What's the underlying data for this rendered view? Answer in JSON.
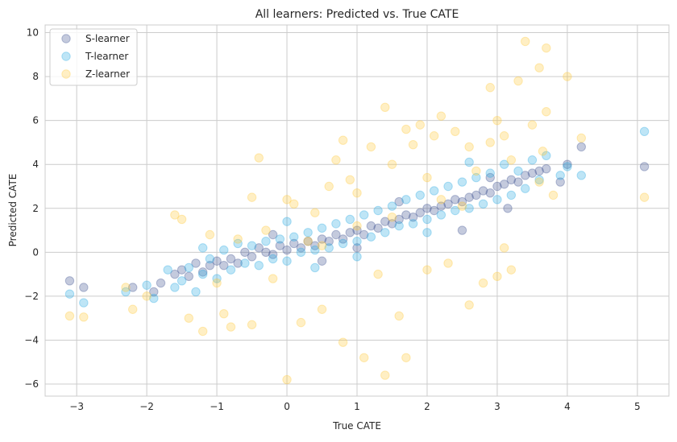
{
  "chart_data": {
    "type": "scatter",
    "title": "All learners: Predicted vs. True CATE",
    "xlabel": "True CATE",
    "ylabel": "Predicted CATE",
    "xlim": [
      -3.45,
      5.45
    ],
    "ylim": [
      -6.55,
      10.35
    ],
    "xticks": [
      -3,
      -2,
      -1,
      0,
      1,
      2,
      3,
      4,
      5
    ],
    "yticks": [
      -6,
      -4,
      -2,
      0,
      2,
      4,
      6,
      8,
      10
    ],
    "xtick_labels": [
      "−3",
      "−2",
      "−1",
      "0",
      "1",
      "2",
      "3",
      "4",
      "5"
    ],
    "ytick_labels": [
      "−6",
      "−4",
      "−2",
      "0",
      "2",
      "4",
      "6",
      "8",
      "10"
    ],
    "grid": true,
    "legend_position": "top-left",
    "series": [
      {
        "name": "S-learner",
        "color": "#3b4f8f",
        "points": [
          [
            -3.1,
            -1.3
          ],
          [
            -2.9,
            -1.6
          ],
          [
            -2.2,
            -1.6
          ],
          [
            -1.9,
            -1.8
          ],
          [
            -1.8,
            -1.4
          ],
          [
            -1.6,
            -1.0
          ],
          [
            -1.5,
            -0.8
          ],
          [
            -1.4,
            -1.1
          ],
          [
            -1.3,
            -0.5
          ],
          [
            -1.2,
            -0.9
          ],
          [
            -1.1,
            -0.6
          ],
          [
            -1.0,
            -0.4
          ],
          [
            -0.9,
            -0.6
          ],
          [
            -0.8,
            -0.3
          ],
          [
            -0.7,
            -0.5
          ],
          [
            -0.6,
            0.0
          ],
          [
            -0.5,
            -0.2
          ],
          [
            -0.4,
            0.2
          ],
          [
            -0.3,
            0.0
          ],
          [
            -0.2,
            -0.1
          ],
          [
            -0.1,
            0.3
          ],
          [
            0.0,
            0.1
          ],
          [
            0.1,
            0.4
          ],
          [
            0.2,
            0.2
          ],
          [
            0.3,
            0.5
          ],
          [
            0.4,
            0.3
          ],
          [
            0.5,
            0.6
          ],
          [
            0.6,
            0.5
          ],
          [
            0.7,
            0.8
          ],
          [
            0.8,
            0.6
          ],
          [
            0.9,
            0.9
          ],
          [
            1.0,
            1.0
          ],
          [
            1.1,
            0.8
          ],
          [
            1.2,
            1.2
          ],
          [
            1.3,
            1.1
          ],
          [
            1.4,
            1.4
          ],
          [
            1.5,
            1.3
          ],
          [
            1.6,
            1.5
          ],
          [
            1.7,
            1.7
          ],
          [
            1.8,
            1.6
          ],
          [
            1.9,
            1.8
          ],
          [
            2.0,
            2.0
          ],
          [
            2.1,
            1.9
          ],
          [
            2.2,
            2.1
          ],
          [
            2.3,
            2.2
          ],
          [
            2.4,
            2.4
          ],
          [
            2.5,
            2.3
          ],
          [
            2.6,
            2.5
          ],
          [
            2.7,
            2.6
          ],
          [
            2.8,
            2.8
          ],
          [
            2.9,
            2.7
          ],
          [
            3.0,
            3.0
          ],
          [
            3.1,
            3.1
          ],
          [
            3.2,
            3.3
          ],
          [
            3.3,
            3.2
          ],
          [
            3.4,
            3.5
          ],
          [
            3.5,
            3.6
          ],
          [
            3.6,
            3.7
          ],
          [
            3.7,
            3.8
          ],
          [
            3.9,
            3.2
          ],
          [
            4.0,
            4.0
          ],
          [
            4.2,
            4.8
          ],
          [
            5.1,
            3.9
          ],
          [
            3.15,
            2.0
          ],
          [
            2.5,
            1.0
          ],
          [
            1.0,
            0.2
          ],
          [
            0.5,
            -0.4
          ],
          [
            -0.2,
            0.8
          ],
          [
            1.6,
            2.3
          ],
          [
            2.9,
            3.4
          ]
        ]
      },
      {
        "name": "T-learner",
        "color": "#29a9e1",
        "points": [
          [
            -3.1,
            -1.9
          ],
          [
            -2.9,
            -2.3
          ],
          [
            -2.3,
            -1.8
          ],
          [
            -2.0,
            -1.5
          ],
          [
            -1.9,
            -2.1
          ],
          [
            -1.7,
            -0.8
          ],
          [
            -1.6,
            -1.6
          ],
          [
            -1.5,
            -1.3
          ],
          [
            -1.4,
            -0.7
          ],
          [
            -1.3,
            -1.8
          ],
          [
            -1.2,
            -1.0
          ],
          [
            -1.1,
            -0.3
          ],
          [
            -1.0,
            -1.2
          ],
          [
            -0.9,
            0.1
          ],
          [
            -0.8,
            -0.8
          ],
          [
            -0.7,
            0.4
          ],
          [
            -0.6,
            -0.5
          ],
          [
            -0.5,
            0.3
          ],
          [
            -0.4,
            -0.6
          ],
          [
            -0.3,
            0.5
          ],
          [
            -0.2,
            -0.3
          ],
          [
            -0.1,
            0.6
          ],
          [
            0.0,
            -0.4
          ],
          [
            0.1,
            0.7
          ],
          [
            0.2,
            0.0
          ],
          [
            0.3,
            0.9
          ],
          [
            0.4,
            0.1
          ],
          [
            0.5,
            1.1
          ],
          [
            0.6,
            0.2
          ],
          [
            0.7,
            1.3
          ],
          [
            0.8,
            0.4
          ],
          [
            0.9,
            1.5
          ],
          [
            1.0,
            0.5
          ],
          [
            1.1,
            1.7
          ],
          [
            1.2,
            0.7
          ],
          [
            1.3,
            1.9
          ],
          [
            1.4,
            0.9
          ],
          [
            1.5,
            2.1
          ],
          [
            1.6,
            1.2
          ],
          [
            1.7,
            2.4
          ],
          [
            1.8,
            1.3
          ],
          [
            1.9,
            2.6
          ],
          [
            2.0,
            1.5
          ],
          [
            2.1,
            2.8
          ],
          [
            2.2,
            1.7
          ],
          [
            2.3,
            3.0
          ],
          [
            2.4,
            1.9
          ],
          [
            2.5,
            3.2
          ],
          [
            2.6,
            2.0
          ],
          [
            2.7,
            3.4
          ],
          [
            2.8,
            2.2
          ],
          [
            2.9,
            3.6
          ],
          [
            3.0,
            2.4
          ],
          [
            3.1,
            4.0
          ],
          [
            3.2,
            2.6
          ],
          [
            3.3,
            3.7
          ],
          [
            3.4,
            2.9
          ],
          [
            3.5,
            4.2
          ],
          [
            3.6,
            3.3
          ],
          [
            3.7,
            4.4
          ],
          [
            3.9,
            3.5
          ],
          [
            4.0,
            3.9
          ],
          [
            4.2,
            3.5
          ],
          [
            5.1,
            5.5
          ],
          [
            0.0,
            1.4
          ],
          [
            1.0,
            -0.2
          ],
          [
            2.0,
            0.9
          ],
          [
            2.6,
            4.1
          ],
          [
            0.4,
            -0.7
          ],
          [
            -1.2,
            0.2
          ]
        ]
      },
      {
        "name": "Z-learner",
        "color": "#ffc93a",
        "points": [
          [
            -3.1,
            -2.9
          ],
          [
            -2.9,
            -2.95
          ],
          [
            -2.3,
            -1.6
          ],
          [
            -2.2,
            -2.6
          ],
          [
            -2.0,
            -2.0
          ],
          [
            -1.6,
            1.7
          ],
          [
            -1.5,
            1.5
          ],
          [
            -1.4,
            -3.0
          ],
          [
            -1.2,
            -3.6
          ],
          [
            -1.1,
            0.8
          ],
          [
            -0.9,
            -2.8
          ],
          [
            -0.8,
            -3.4
          ],
          [
            -0.7,
            0.6
          ],
          [
            -0.5,
            2.5
          ],
          [
            -0.4,
            4.3
          ],
          [
            -0.5,
            -3.3
          ],
          [
            -0.3,
            1.0
          ],
          [
            -0.2,
            -1.2
          ],
          [
            0.0,
            2.4
          ],
          [
            0.0,
            -5.8
          ],
          [
            0.1,
            2.2
          ],
          [
            0.2,
            -3.2
          ],
          [
            0.3,
            0.5
          ],
          [
            0.4,
            1.8
          ],
          [
            0.5,
            -2.6
          ],
          [
            0.6,
            3.0
          ],
          [
            0.7,
            4.2
          ],
          [
            0.8,
            5.1
          ],
          [
            0.8,
            -4.1
          ],
          [
            0.9,
            3.3
          ],
          [
            1.0,
            2.7
          ],
          [
            1.1,
            -4.8
          ],
          [
            1.2,
            4.8
          ],
          [
            1.3,
            -1.0
          ],
          [
            1.4,
            6.6
          ],
          [
            1.4,
            -5.6
          ],
          [
            1.5,
            4.0
          ],
          [
            1.6,
            -2.9
          ],
          [
            1.7,
            5.6
          ],
          [
            1.7,
            -4.8
          ],
          [
            1.8,
            4.9
          ],
          [
            1.9,
            5.8
          ],
          [
            2.0,
            3.4
          ],
          [
            2.1,
            5.3
          ],
          [
            2.2,
            6.2
          ],
          [
            2.3,
            -0.5
          ],
          [
            2.4,
            5.5
          ],
          [
            2.5,
            2.1
          ],
          [
            2.6,
            4.8
          ],
          [
            2.6,
            -2.4
          ],
          [
            2.7,
            3.7
          ],
          [
            2.8,
            -1.4
          ],
          [
            2.9,
            5.0
          ],
          [
            2.9,
            7.5
          ],
          [
            3.0,
            -1.1
          ],
          [
            3.0,
            6.0
          ],
          [
            3.1,
            0.2
          ],
          [
            3.1,
            5.3
          ],
          [
            3.2,
            4.2
          ],
          [
            3.2,
            -0.8
          ],
          [
            3.3,
            7.8
          ],
          [
            3.4,
            9.6
          ],
          [
            3.5,
            5.8
          ],
          [
            3.6,
            8.4
          ],
          [
            3.6,
            3.2
          ],
          [
            3.7,
            9.3
          ],
          [
            3.7,
            6.4
          ],
          [
            3.8,
            2.6
          ],
          [
            4.0,
            8.0
          ],
          [
            4.2,
            5.2
          ],
          [
            5.1,
            2.5
          ],
          [
            3.65,
            4.6
          ],
          [
            2.0,
            -0.8
          ],
          [
            1.0,
            1.2
          ],
          [
            0.5,
            0.3
          ],
          [
            -1.0,
            -1.4
          ],
          [
            1.5,
            1.6
          ],
          [
            2.2,
            2.4
          ]
        ]
      }
    ]
  }
}
